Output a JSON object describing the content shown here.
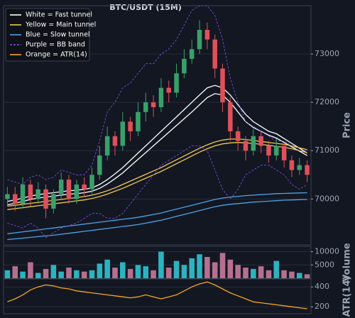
{
  "chart_data": [
    {
      "type": "candlestick",
      "title": "BTC/USDT (15M)",
      "y_label": "Price",
      "ylim": [
        69050,
        74000
      ],
      "yticks": [
        70000,
        71000,
        72000,
        73000
      ],
      "grid": true,
      "up_color": "#3aa06b",
      "down_color": "#e0505a",
      "open": [
        70000,
        70100,
        69900,
        70300,
        70000,
        70200,
        69800,
        70100,
        70400,
        70000,
        70300,
        70200,
        70500,
        70900,
        71300,
        71100,
        71600,
        71400,
        71800,
        72000,
        71900,
        72300,
        72200,
        72600,
        72900,
        73100,
        73500,
        73300,
        72700,
        72000,
        71400,
        71200,
        71000,
        71300,
        71100,
        70900,
        71100,
        70800,
        70600,
        70700
      ],
      "high": [
        70250,
        70250,
        70450,
        70400,
        70350,
        70300,
        70200,
        70550,
        70500,
        70400,
        70450,
        70650,
        71100,
        71500,
        71400,
        71800,
        71700,
        72000,
        72200,
        72150,
        72500,
        72450,
        72800,
        73100,
        73300,
        73700,
        73650,
        73400,
        72800,
        72100,
        71500,
        71300,
        71450,
        71400,
        71200,
        71250,
        71150,
        70900,
        70850,
        70800
      ],
      "low": [
        69850,
        69750,
        69800,
        69850,
        69900,
        69600,
        69700,
        70000,
        69900,
        69900,
        70050,
        70100,
        70400,
        70800,
        70900,
        71000,
        71200,
        71300,
        71600,
        71700,
        71800,
        72000,
        72100,
        72500,
        72800,
        73000,
        73100,
        72500,
        71800,
        71200,
        71000,
        70800,
        70900,
        70950,
        70750,
        70800,
        70650,
        70450,
        70500,
        70350
      ],
      "close": [
        70100,
        69900,
        70300,
        70000,
        70200,
        69800,
        70100,
        70400,
        70000,
        70300,
        70200,
        70500,
        70900,
        71300,
        71100,
        71600,
        71400,
        71800,
        72000,
        71900,
        72300,
        72200,
        72600,
        72900,
        73100,
        73500,
        73300,
        72700,
        72000,
        71400,
        71200,
        71000,
        71300,
        71100,
        70900,
        71100,
        70800,
        70600,
        70700,
        70500
      ],
      "series": [
        {
          "name": "White = Fast tunnel",
          "color": "#ffffff",
          "style": "solid",
          "upper": [
            69950,
            69980,
            70020,
            70060,
            70090,
            70110,
            70130,
            70150,
            70170,
            70180,
            70200,
            70230,
            70300,
            70400,
            70520,
            70650,
            70800,
            70950,
            71100,
            71250,
            71400,
            71550,
            71700,
            71850,
            72000,
            72150,
            72300,
            72350,
            72300,
            72150,
            71950,
            71750,
            71600,
            71500,
            71400,
            71350,
            71250,
            71150,
            71050,
            70950
          ],
          "lower": [
            69880,
            69910,
            69950,
            69990,
            70020,
            70040,
            70060,
            70080,
            70100,
            70110,
            70130,
            70160,
            70220,
            70310,
            70420,
            70540,
            70680,
            70820,
            70960,
            71100,
            71240,
            71380,
            71520,
            71660,
            71800,
            71950,
            72100,
            72180,
            72150,
            72000,
            71800,
            71600,
            71480,
            71400,
            71320,
            71260,
            71170,
            71080,
            70990,
            70900
          ]
        },
        {
          "name": "Yellow = Main tunnel",
          "color": "#f2c94c",
          "style": "solid",
          "upper": [
            69850,
            69870,
            69890,
            69910,
            69930,
            69950,
            69970,
            69990,
            70010,
            70030,
            70050,
            70080,
            70120,
            70170,
            70230,
            70300,
            70370,
            70440,
            70510,
            70580,
            70650,
            70730,
            70810,
            70890,
            70970,
            71050,
            71120,
            71180,
            71220,
            71240,
            71240,
            71230,
            71210,
            71190,
            71170,
            71150,
            71130,
            71100,
            71060,
            71020
          ],
          "lower": [
            69780,
            69800,
            69820,
            69840,
            69860,
            69880,
            69900,
            69920,
            69940,
            69960,
            69980,
            70010,
            70050,
            70100,
            70160,
            70220,
            70290,
            70360,
            70430,
            70500,
            70570,
            70650,
            70730,
            70810,
            70890,
            70970,
            71040,
            71100,
            71140,
            71160,
            71170,
            71160,
            71150,
            71130,
            71110,
            71090,
            71070,
            71040,
            71000,
            70960
          ]
        },
        {
          "name": "Blue = Slow tunnel",
          "color": "#4da3e8",
          "style": "solid",
          "upper": [
            69280,
            69300,
            69320,
            69340,
            69360,
            69380,
            69400,
            69420,
            69440,
            69460,
            69480,
            69500,
            69520,
            69540,
            69560,
            69580,
            69600,
            69620,
            69650,
            69680,
            69710,
            69750,
            69790,
            69830,
            69870,
            69910,
            69950,
            69990,
            70020,
            70040,
            70055,
            70070,
            70080,
            70090,
            70100,
            70110,
            70115,
            70120,
            70125,
            70130
          ],
          "lower": [
            69160,
            69175,
            69190,
            69205,
            69220,
            69235,
            69250,
            69270,
            69290,
            69310,
            69330,
            69350,
            69370,
            69390,
            69410,
            69430,
            69450,
            69470,
            69500,
            69530,
            69560,
            69600,
            69640,
            69680,
            69720,
            69760,
            69800,
            69840,
            69870,
            69890,
            69905,
            69920,
            69935,
            69945,
            69955,
            69965,
            69975,
            69980,
            69985,
            69990
          ]
        },
        {
          "name": "Purple = BB band",
          "color": "#7b52e6",
          "style": "dashed",
          "upper": [
            70400,
            70350,
            70300,
            70450,
            70500,
            70400,
            70450,
            70600,
            70550,
            70500,
            70500,
            70700,
            71200,
            71800,
            72000,
            72300,
            72400,
            72600,
            72800,
            72800,
            73000,
            73100,
            73300,
            73600,
            73900,
            74000,
            74000,
            73800,
            73300,
            72500,
            72000,
            71600,
            71500,
            71400,
            71300,
            71200,
            71200,
            71100,
            71000,
            71000
          ],
          "lower": [
            69500,
            69450,
            69400,
            69500,
            69400,
            69200,
            69300,
            69400,
            69450,
            69500,
            69600,
            69700,
            69700,
            69600,
            69600,
            69700,
            69900,
            70100,
            70300,
            70500,
            70700,
            70800,
            70900,
            71000,
            71100,
            71100,
            71000,
            70600,
            70200,
            70000,
            70200,
            70500,
            70600,
            70700,
            70700,
            70600,
            70500,
            70300,
            70200,
            70300
          ]
        }
      ]
    },
    {
      "type": "bar",
      "y_label": "Volume",
      "ylim": [
        0,
        12000
      ],
      "yticks": [
        5000,
        10000
      ],
      "grid": true,
      "up_color": "#2bb3c0",
      "down_color": "#b5708f",
      "values": [
        3000,
        4500,
        2500,
        6000,
        2000,
        3500,
        5000,
        2500,
        4000,
        3000,
        2500,
        3000,
        5500,
        7000,
        4000,
        6000,
        3500,
        5000,
        4500,
        3000,
        10000,
        4000,
        6500,
        5000,
        7500,
        9000,
        8000,
        6000,
        9500,
        7000,
        5000,
        4000,
        3500,
        4500,
        3000,
        6500,
        3000,
        2500,
        2000,
        1500
      ]
    },
    {
      "type": "line",
      "y_label": "ATR(14)",
      "ylim": [
        130,
        480
      ],
      "yticks": [
        200,
        400
      ],
      "grid": true,
      "series": [
        {
          "name": "Orange = ATR(14)",
          "color": "#f5a623",
          "values": [
            250,
            280,
            320,
            370,
            400,
            420,
            410,
            390,
            380,
            360,
            350,
            340,
            330,
            320,
            310,
            300,
            290,
            300,
            320,
            300,
            280,
            300,
            320,
            360,
            400,
            430,
            450,
            420,
            380,
            340,
            310,
            280,
            250,
            240,
            230,
            220,
            210,
            200,
            190,
            180
          ]
        }
      ]
    }
  ]
}
